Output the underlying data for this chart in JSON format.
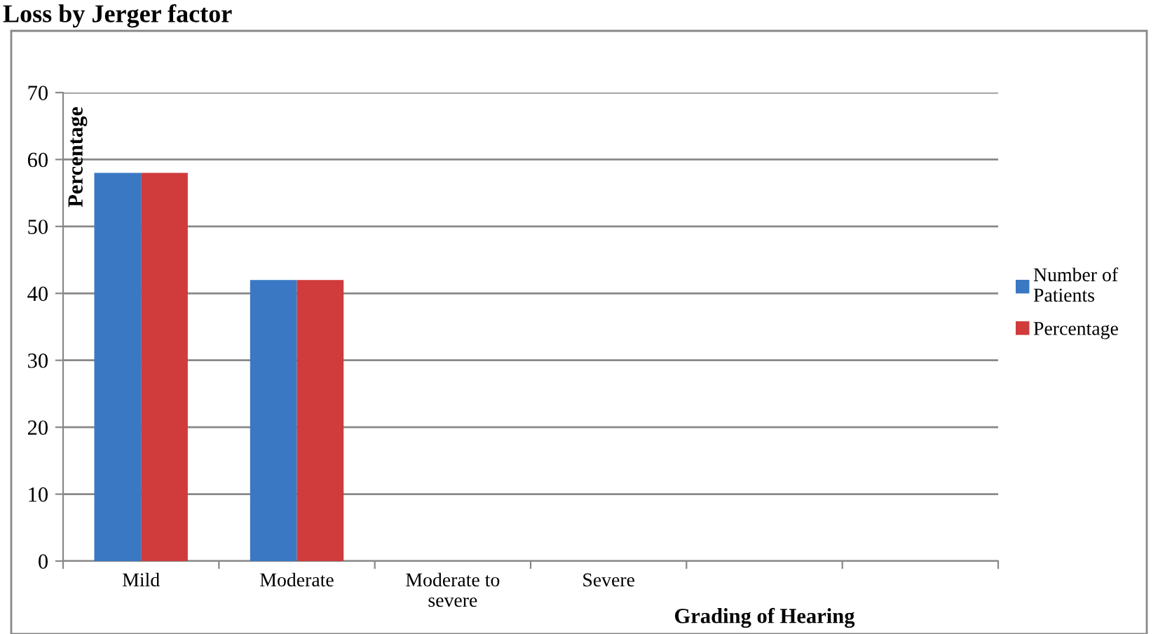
{
  "chart_data": {
    "type": "bar",
    "title": "Loss by Jerger factor",
    "xlabel": "Grading of Hearing",
    "ylabel": "Percentage",
    "categories": [
      "Mild",
      "Moderate",
      "Moderate to\nsevere",
      "Severe",
      null,
      null
    ],
    "series": [
      {
        "name": "Number of\nPatients",
        "color": "#3a78c4",
        "values": [
          58,
          42,
          null,
          null,
          null,
          null
        ]
      },
      {
        "name": "Percentage",
        "color": "#d03b3b",
        "values": [
          58,
          42,
          null,
          null,
          null,
          null
        ]
      }
    ],
    "ylim": [
      0,
      70
    ],
    "yticks": [
      0,
      10,
      20,
      30,
      40,
      50,
      60,
      70
    ],
    "grid": "y",
    "legend": "right"
  }
}
